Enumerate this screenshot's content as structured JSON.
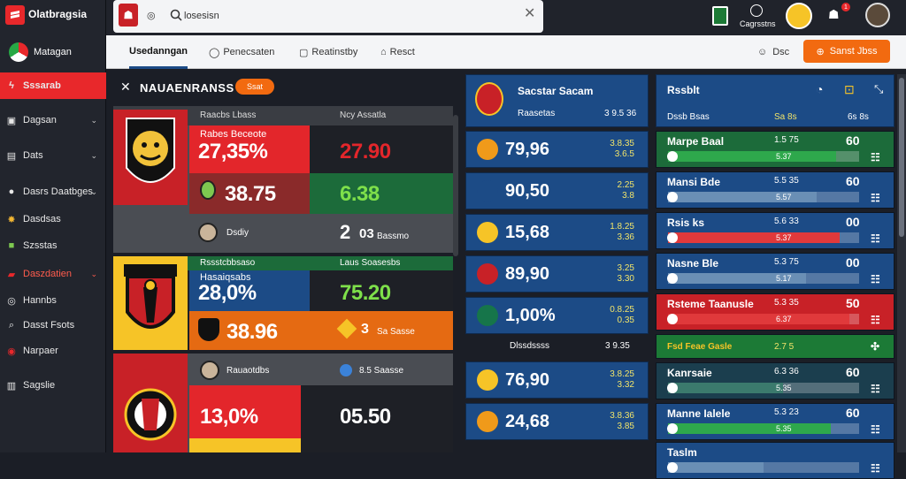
{
  "app": {
    "name": "Olatbragsia"
  },
  "sidebar": {
    "logo_text": "Olatbragsia",
    "profile_label": "Matagan",
    "items": [
      {
        "label": "Sssarab",
        "icon": "bolt-icon",
        "active": true
      },
      {
        "label": "Dagsan",
        "icon": "ticket-icon",
        "chevron": true
      },
      {
        "label": "Dats",
        "icon": "card-icon",
        "chevron": true
      },
      {
        "label": "Dasrs Daatbges",
        "icon": "user-icon",
        "chevron": true
      },
      {
        "label": "Dasdsas",
        "icon": "fire-icon"
      },
      {
        "label": "Szsstas",
        "icon": "grid-icon"
      },
      {
        "label": "Daszdatien",
        "icon": "trophy-icon",
        "highlight": true,
        "chevron": true
      },
      {
        "label": "Hannbs",
        "icon": "chat-icon"
      },
      {
        "label": "Dasst Fsots",
        "icon": "search-icon"
      },
      {
        "label": "Narpaer",
        "icon": "coin-icon"
      },
      {
        "label": "Sagslie",
        "icon": "flag-icon"
      }
    ]
  },
  "search": {
    "value": "losesisn",
    "placeholder": "Search"
  },
  "header": {
    "notif_label": "Cagrsstns",
    "badge_count": "1"
  },
  "subnav": {
    "tabs": [
      {
        "label": "Usedanngan",
        "active": true
      },
      {
        "label": "Penecsaten"
      },
      {
        "label": "Reatinstby"
      },
      {
        "label": "Resct"
      }
    ],
    "chat_label": "Dsc",
    "cta_label": "Sanst Jbss"
  },
  "matches_panel": {
    "title": "NAUAENRANSS",
    "badge": "Ssat",
    "cards": [
      {
        "label_top": "Raacbs Lbass",
        "label_right": "Ncy  Assatla",
        "team1_name": "Rabes Beceote",
        "pct1": "27,35%",
        "num1": "27.90",
        "pct2": "38.75",
        "num2": "6.38",
        "footer_label": "Dsdiy",
        "footer_num": "2",
        "footer_num2": "03",
        "footer_small": "Bassmo"
      },
      {
        "label_top": "Rssstcbbsaso",
        "label_right": "Laus Soasesbs",
        "team1_name": "Hasaiqsabs",
        "pct1": "28,0%",
        "num1": "75.20",
        "pct2": "38.96",
        "num2": "3",
        "num2_suffix": "Sa Sasse"
      },
      {
        "label_top": "Rauaotdbs",
        "label_right": "8.5 Saasse",
        "pct1": "13,0%",
        "num1": "05.50"
      }
    ]
  },
  "odds_panel": {
    "title": "Sacstar Sacam",
    "subtitle": "Raasetas",
    "header_odds": "3  9.5 36",
    "rows": [
      {
        "value": "79,96",
        "odds": "3.8.35\n3.6.5",
        "icon_bg": "#f09a1a",
        "icon": "flame-icon"
      },
      {
        "value": "90,50",
        "odds": "2.25\n3.8",
        "icon_bg": "#1c4b86",
        "icon": "sail-icon"
      },
      {
        "value": "15,68",
        "odds": "1.8.25\n3.36",
        "icon_bg": "#f6c427",
        "icon": "ball-icon"
      },
      {
        "value": "89,90",
        "odds": "3.25\n3.30",
        "icon_bg": "#c82127",
        "icon": "shield-icon"
      },
      {
        "value": "1,00%",
        "odds": "0.8.25\n0.35",
        "icon_bg": "#16754a",
        "icon": "swirl-icon"
      }
    ],
    "separator_label": "Dlssdssss",
    "separator_odds": "3  9.35",
    "rows2": [
      {
        "value": "76,90",
        "odds": "3.8.25\n3.32",
        "icon_bg": "#f6c427",
        "icon": "badge-icon"
      },
      {
        "value": "24,68",
        "odds": "3.8.36\n3.85",
        "icon_bg": "#f09a1a",
        "icon": "crest-icon"
      }
    ]
  },
  "live_panel": {
    "title": "Rssblt",
    "col1": "Dssb Bsas",
    "col2": "Sa 8s",
    "col3": "6s 8s",
    "rows": [
      {
        "name": "Marpe Baal",
        "mid": "1.5 75",
        "score": "60",
        "bar": "5.37",
        "fill": 0.88,
        "bg": "#1c6b3a",
        "fill_color": "#2ea84c"
      },
      {
        "name": "Mansi Bde",
        "mid": "5.5 35",
        "score": "60",
        "bar": "5.57",
        "fill": 0.78,
        "bg": "#1c4b86",
        "fill_color": "#6a8fb5"
      },
      {
        "name": "Rsis ks",
        "mid": "5.6 33",
        "score": "00",
        "bar": "5.37",
        "fill": 0.9,
        "bg": "#1c4b86",
        "fill_color": "#e0393b"
      },
      {
        "name": "Nasne Ble",
        "mid": "5.3 75",
        "score": "00",
        "bar": "5.17",
        "fill": 0.72,
        "bg": "#1c4b86",
        "fill_color": "#6a8fb5"
      },
      {
        "name": "Rsteme Taanusle",
        "mid": "5.3 35",
        "score": "50",
        "bar": "6.37",
        "fill": 0.95,
        "bg": "#c82127",
        "fill_color": "#e0393b"
      },
      {
        "name": "Fsd  Feae Gasle",
        "mid": "2.7 5",
        "score": "",
        "bar": "",
        "fill": 0,
        "bg": "#1c7a36",
        "fill_color": "#2ea84c",
        "short": true
      },
      {
        "name": "Kanrsaie",
        "mid": "6.3 36",
        "score": "60",
        "bar": "5.35",
        "fill": 0.6,
        "bg": "#1b3e4e",
        "fill_color": "#3b7a6d"
      },
      {
        "name": "Manne Ialele",
        "mid": "5.3 23",
        "score": "60",
        "bar": "5.35",
        "fill": 0.85,
        "bg": "#1c4b86",
        "fill_color": "#2ea84c"
      },
      {
        "name": "Taslm",
        "mid": "",
        "score": "",
        "bar": "",
        "fill": 0.5,
        "bg": "#1c4b86",
        "fill_color": "#6a8fb5"
      }
    ]
  }
}
